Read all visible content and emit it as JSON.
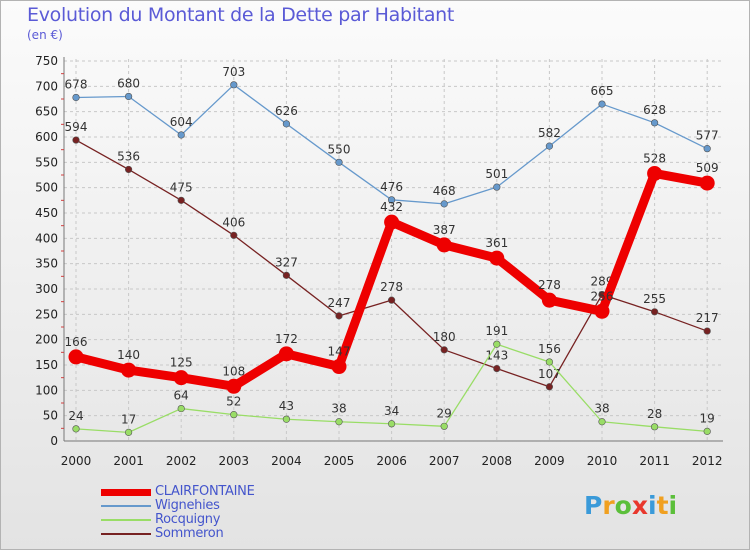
{
  "chart_data": {
    "type": "line",
    "title": "Evolution du Montant de la Dette par Habitant",
    "subtitle": "(en €)",
    "xlabel": "",
    "ylabel": "",
    "ylim": [
      0,
      750
    ],
    "y_ticks": [
      0,
      50,
      100,
      150,
      200,
      250,
      300,
      350,
      400,
      450,
      500,
      550,
      600,
      650,
      700,
      750
    ],
    "grid": true,
    "legend_position": "bottom-left",
    "categories": [
      "2000",
      "2001",
      "2002",
      "2003",
      "2004",
      "2005",
      "2006",
      "2007",
      "2008",
      "2009",
      "2010",
      "2011",
      "2012"
    ],
    "series": [
      {
        "name": "CLAIRFONTAINE",
        "color": "#ee0000",
        "values": [
          166,
          140,
          125,
          108,
          172,
          147,
          432,
          387,
          361,
          278,
          256,
          528,
          509
        ]
      },
      {
        "name": "Wignehies",
        "color": "#6699cc",
        "values": [
          678,
          680,
          604,
          703,
          626,
          550,
          476,
          468,
          501,
          582,
          665,
          628,
          577
        ]
      },
      {
        "name": "Rocquigny",
        "color": "#99dd66",
        "values": [
          24,
          17,
          64,
          52,
          43,
          38,
          34,
          29,
          191,
          156,
          38,
          28,
          19
        ]
      },
      {
        "name": "Sommeron",
        "color": "#772222",
        "values": [
          594,
          536,
          475,
          406,
          327,
          247,
          278,
          180,
          143,
          107,
          289,
          255,
          217
        ]
      }
    ]
  },
  "branding": {
    "logo": [
      "P",
      "r",
      "o",
      "x",
      "i",
      "t",
      "i"
    ]
  }
}
